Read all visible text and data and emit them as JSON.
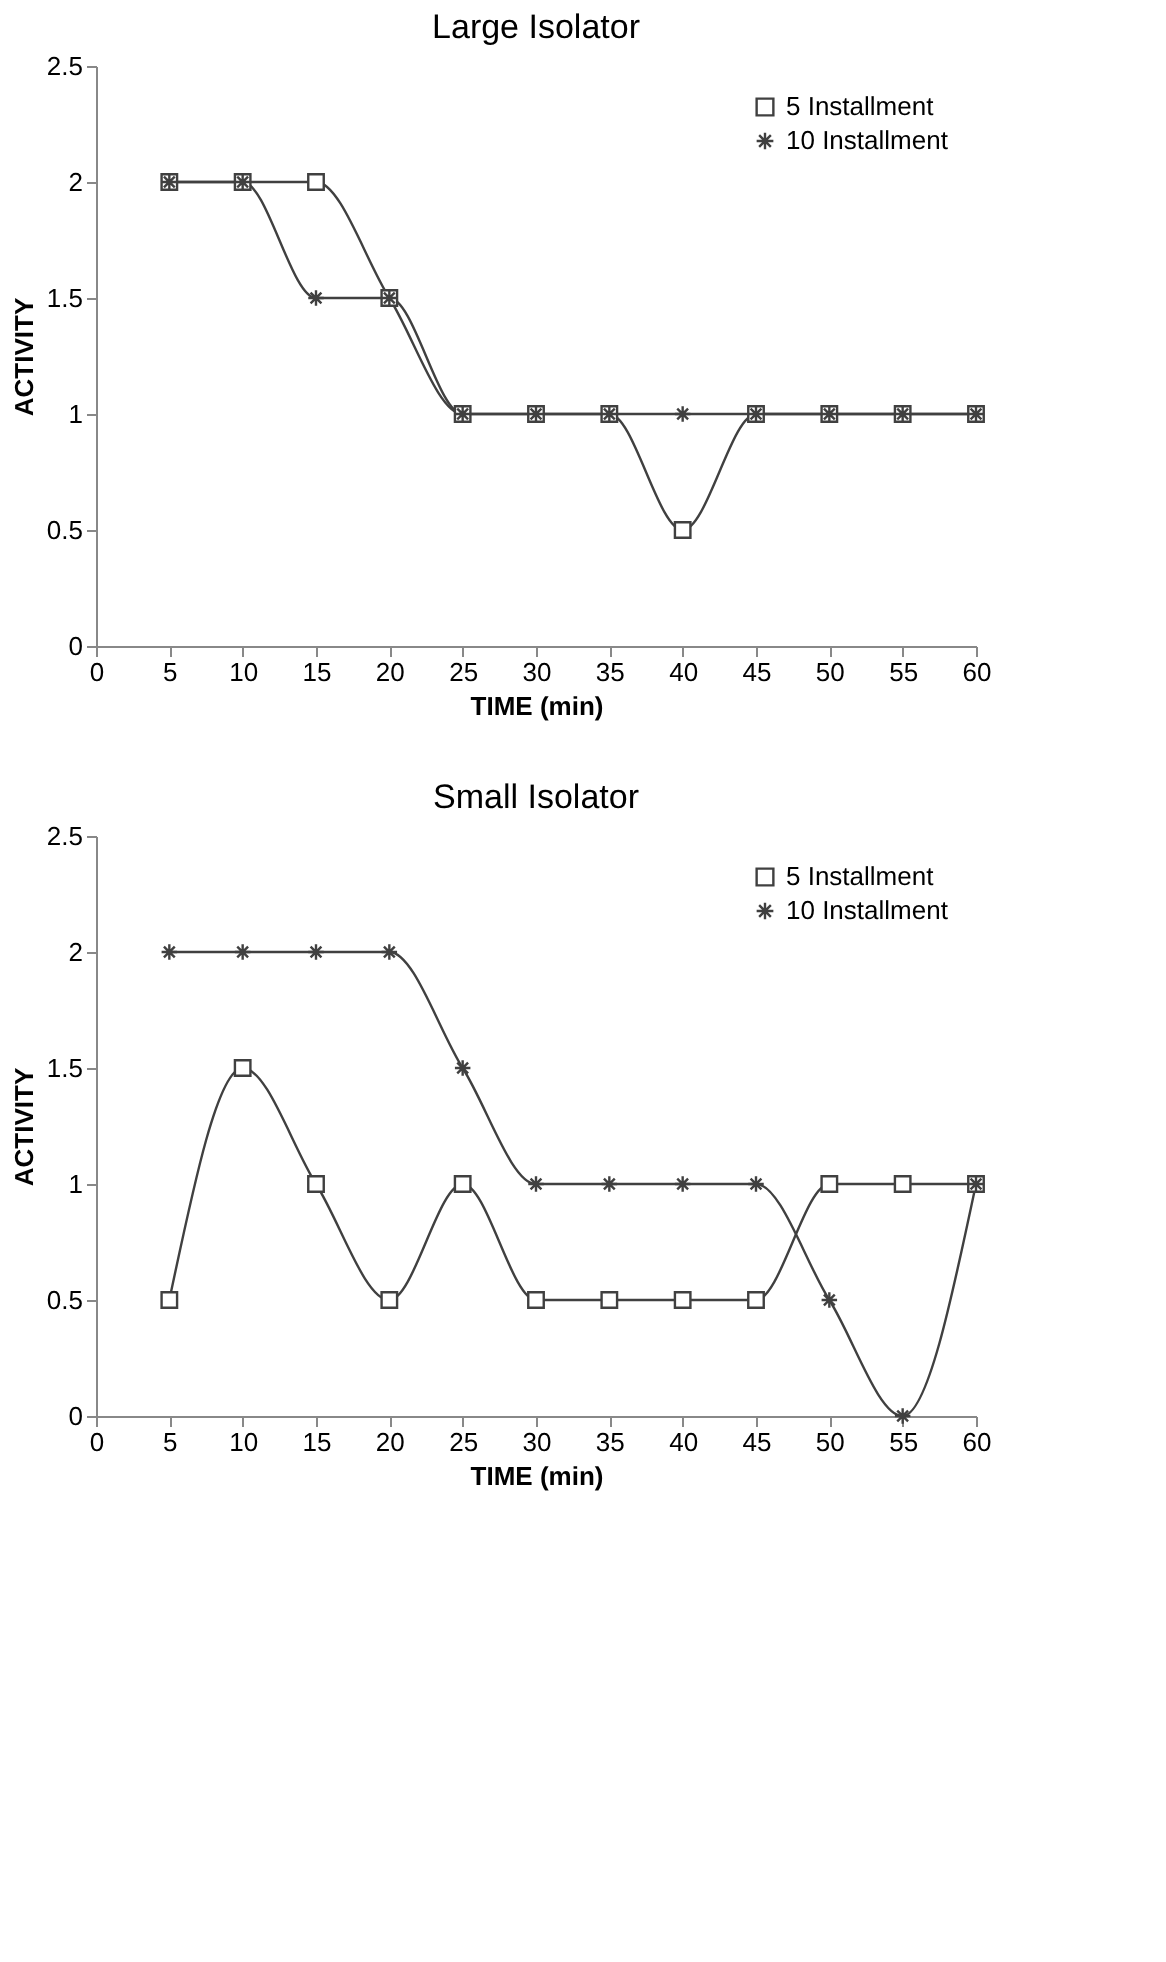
{
  "chart_data": [
    {
      "type": "line",
      "title": "Large Isolator",
      "xlabel": "TIME (min)",
      "ylabel": "ACTIVITY",
      "x": [
        5,
        10,
        15,
        20,
        25,
        30,
        35,
        40,
        45,
        50,
        55,
        60
      ],
      "xlim": [
        0,
        60
      ],
      "xticks": [
        0,
        5,
        10,
        15,
        20,
        25,
        30,
        35,
        40,
        45,
        50,
        55,
        60
      ],
      "ylim": [
        0,
        2.5
      ],
      "yticks": [
        0,
        0.5,
        1,
        1.5,
        2,
        2.5
      ],
      "grid": false,
      "legend": "top right",
      "series": [
        {
          "name": "5 Installment",
          "color": "#404040",
          "marker": "square",
          "values": [
            2,
            2,
            2,
            1.5,
            1,
            1,
            1,
            0.5,
            1,
            1,
            1,
            1
          ]
        },
        {
          "name": "10 Installment",
          "color": "#404040",
          "marker": "cross",
          "values": [
            2,
            2,
            1.5,
            1.5,
            1,
            1,
            1,
            1,
            1,
            1,
            1,
            1
          ]
        }
      ]
    },
    {
      "type": "line",
      "title": "Small Isolator",
      "xlabel": "TIME (min)",
      "ylabel": "ACTIVITY",
      "x": [
        5,
        10,
        15,
        20,
        25,
        30,
        35,
        40,
        45,
        50,
        55,
        60
      ],
      "xlim": [
        0,
        60
      ],
      "xticks": [
        0,
        5,
        10,
        15,
        20,
        25,
        30,
        35,
        40,
        45,
        50,
        55,
        60
      ],
      "ylim": [
        0,
        2.5
      ],
      "yticks": [
        0,
        0.5,
        1,
        1.5,
        2,
        2.5
      ],
      "grid": false,
      "legend": "top right",
      "series": [
        {
          "name": "5 Installment",
          "color": "#404040",
          "marker": "square",
          "values": [
            0.5,
            1.5,
            1,
            0.5,
            1,
            0.5,
            0.5,
            0.5,
            0.5,
            1,
            1,
            1
          ]
        },
        {
          "name": "10 Installment",
          "color": "#404040",
          "marker": "cross",
          "values": [
            2,
            2,
            2,
            2,
            1.5,
            1,
            1,
            1,
            1,
            0.5,
            0,
            1
          ]
        }
      ]
    }
  ]
}
